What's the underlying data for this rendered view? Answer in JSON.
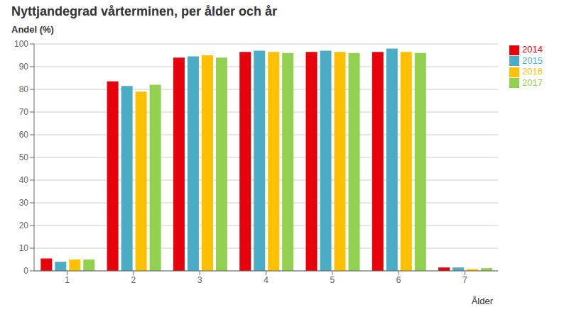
{
  "chart_data": {
    "type": "bar",
    "title": "Nyttjandegrad vårterminen, per ålder och år",
    "y_label": "Andel (%)",
    "x_label": "Ålder",
    "categories": [
      "1",
      "2",
      "3",
      "4",
      "5",
      "6",
      "7"
    ],
    "series": [
      {
        "name": "2014",
        "color": "#E8000A",
        "values": [
          5.5,
          83.5,
          94.0,
          96.5,
          96.5,
          96.5,
          1.5
        ]
      },
      {
        "name": "2015",
        "color": "#4BACC6",
        "values": [
          4.0,
          81.5,
          94.5,
          97.0,
          97.0,
          98.0,
          1.5
        ]
      },
      {
        "name": "2016",
        "color": "#FFC000",
        "values": [
          5.0,
          79.0,
          95.0,
          96.5,
          96.5,
          96.5,
          0.8
        ]
      },
      {
        "name": "2017",
        "color": "#92D050",
        "values": [
          5.0,
          82.0,
          94.0,
          96.0,
          96.0,
          96.0,
          1.2
        ]
      }
    ],
    "ylim": [
      0,
      100
    ],
    "yticks": [
      0,
      10,
      20,
      30,
      40,
      50,
      60,
      70,
      80,
      90,
      100
    ],
    "grid": true,
    "legend": "right"
  }
}
